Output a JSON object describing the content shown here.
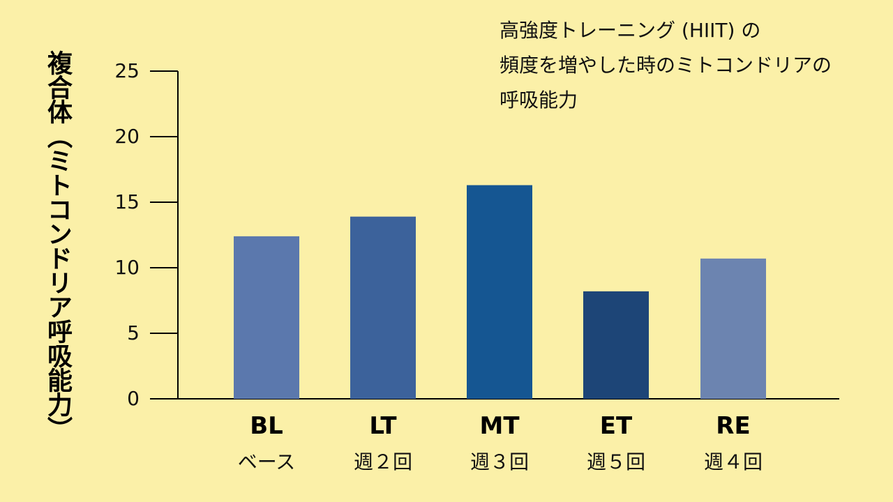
{
  "chart_data": {
    "type": "bar",
    "title_lines": [
      "高強度トレーニング (HIIT) の",
      "頻度を増やした時のミトコンドリアの",
      "呼吸能力"
    ],
    "ylabel": "複合体（ミトコンドリア呼吸能力）",
    "xlabel": "",
    "ylim": [
      0,
      25
    ],
    "yticks": [
      0,
      5,
      10,
      15,
      20,
      25
    ],
    "categories": [
      "BL",
      "LT",
      "MT",
      "ET",
      "RE"
    ],
    "sublabels": [
      "ベース",
      "週２回",
      "週３回",
      "週５回",
      "週４回"
    ],
    "values": [
      12.4,
      13.9,
      16.3,
      8.2,
      10.7
    ],
    "bar_colors": [
      "#5B78AD",
      "#3C629B",
      "#155692",
      "#1D4577",
      "#6C84B0"
    ],
    "grid": false,
    "legend": "none"
  }
}
